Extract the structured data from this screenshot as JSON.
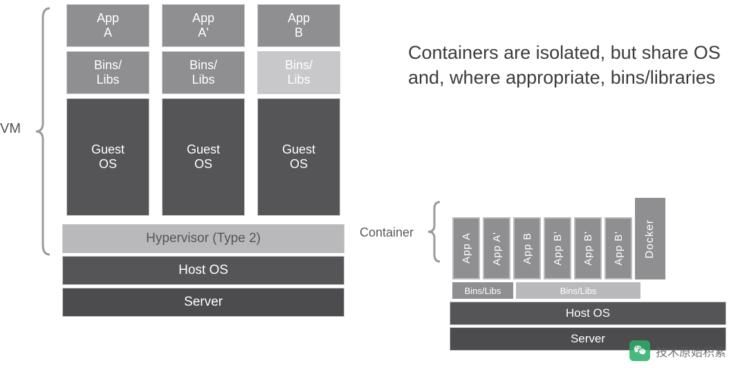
{
  "colors": {
    "dark": "#555558",
    "darker": "#4c4c4f",
    "mid": "#8f8f92",
    "light": "#b9b9bc",
    "lighter": "#c8c8cb",
    "text_white": "#ffffff",
    "text_gray": "#525252",
    "brace": "#9a9a9a",
    "brand_green": "#2aae67"
  },
  "vm": {
    "label": "VM",
    "columns": [
      {
        "app": "App\nA",
        "bins": "Bins/\nLibs",
        "bins_color_key": "mid",
        "guest": "Guest\nOS"
      },
      {
        "app": "App\nA'",
        "bins": "Bins/\nLibs",
        "bins_color_key": "mid",
        "guest": "Guest\nOS"
      },
      {
        "app": "App\nB",
        "bins": "Bins/\nLibs",
        "bins_color_key": "lighter",
        "guest": "Guest\nOS"
      }
    ],
    "bottom": [
      {
        "label": "Hypervisor (Type 2)",
        "color_key": "light",
        "text": "dark"
      },
      {
        "label": "Host OS",
        "color_key": "dark",
        "text": "text_white"
      },
      {
        "label": "Server",
        "color_key": "darker",
        "text": "text_white"
      }
    ]
  },
  "containers": {
    "heading": "Containers are isolated,\nbut share OS and, where\nappropriate, bins/libraries",
    "label": "Container",
    "apps_group1": [
      "App A",
      "App A'"
    ],
    "apps_group2": [
      "App B",
      "App B'",
      "App B'",
      "App B'"
    ],
    "apps_color_key": "mid",
    "docker_label": "Docker",
    "docker_color_key": "mid",
    "bins1": {
      "label": "Bins/Libs",
      "width": 88,
      "color_key": "mid"
    },
    "bins2": {
      "label": "Bins/Libs",
      "width": 180,
      "color_key": "light"
    },
    "bottom": [
      {
        "label": "Host OS",
        "color_key": "dark",
        "text": "text_white"
      },
      {
        "label": "Server",
        "color_key": "darker",
        "text": "text_white"
      }
    ]
  },
  "watermark": {
    "text": "技术原始积累"
  }
}
